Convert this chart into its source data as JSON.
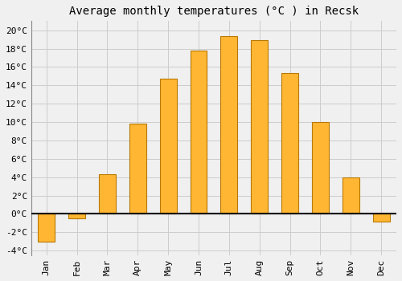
{
  "title": "Average monthly temperatures (°C ) in Recsk",
  "months": [
    "Jan",
    "Feb",
    "Mar",
    "Apr",
    "May",
    "Jun",
    "Jul",
    "Aug",
    "Sep",
    "Oct",
    "Nov",
    "Dec"
  ],
  "values": [
    -3.0,
    -0.5,
    4.3,
    9.8,
    14.7,
    17.8,
    19.4,
    18.9,
    15.3,
    10.0,
    4.0,
    -0.8
  ],
  "bar_color": "#FFB733",
  "bar_edge_color": "#B87800",
  "ylim": [
    -4.5,
    21
  ],
  "yticks": [
    -4,
    -2,
    0,
    2,
    4,
    6,
    8,
    10,
    12,
    14,
    16,
    18,
    20
  ],
  "ytick_labels": [
    "-4°C",
    "-2°C",
    "0°C",
    "2°C",
    "4°C",
    "6°C",
    "8°C",
    "10°C",
    "12°C",
    "14°C",
    "16°C",
    "18°C",
    "20°C"
  ],
  "background_color": "#f0f0f0",
  "grid_color": "#cccccc",
  "title_fontsize": 10,
  "tick_fontsize": 8,
  "zero_line_color": "#000000",
  "bar_width": 0.55
}
